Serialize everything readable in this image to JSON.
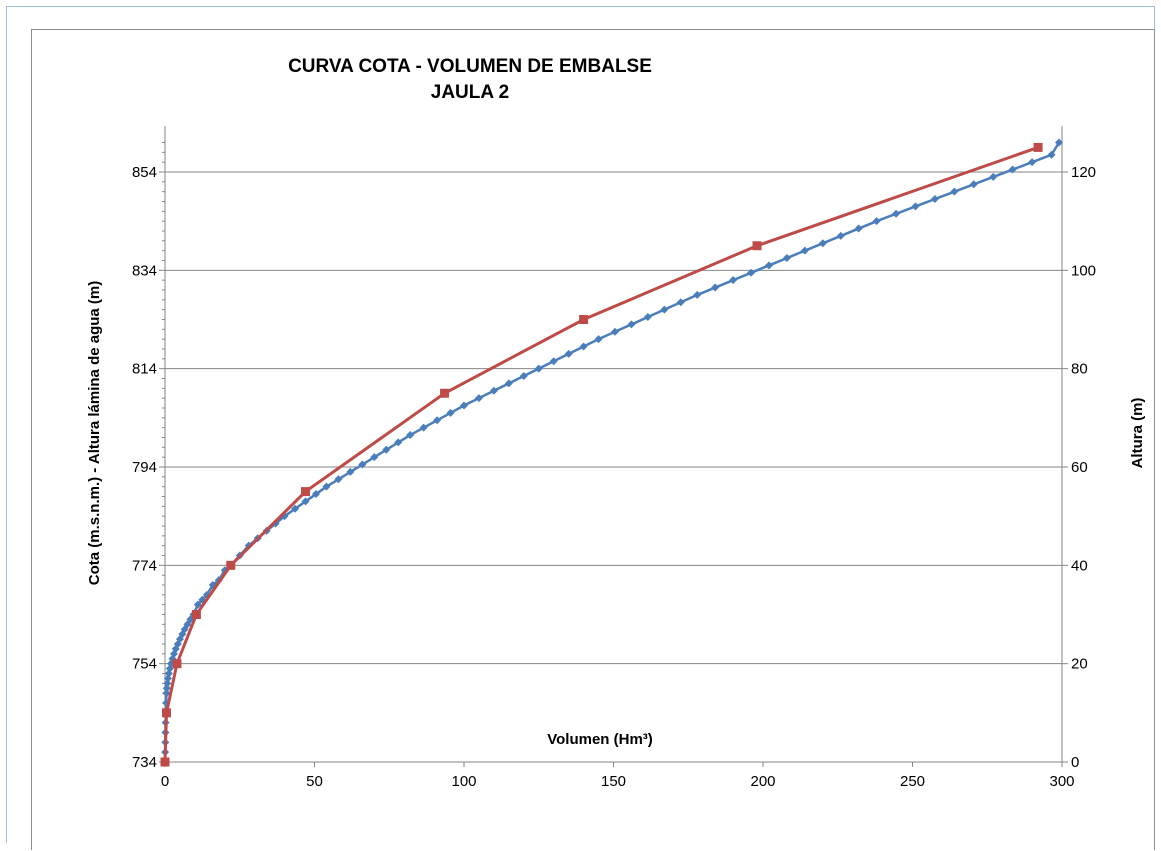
{
  "chart_data": {
    "type": "line",
    "title": "CURVA  COTA - VOLUMEN DE EMBALSE",
    "subtitle": "JAULA  2",
    "xlabel": "Volumen (Hm³)",
    "ylabel": "Cota (m.s.n.m.) - Altura lámina de agua (m)",
    "y2label": "Altura (m)",
    "xlim": [
      0,
      300
    ],
    "ylim": [
      734,
      860
    ],
    "y2lim": [
      0,
      126
    ],
    "xticks": [
      0,
      50,
      100,
      150,
      200,
      250,
      300
    ],
    "yticks": [
      734,
      754,
      774,
      794,
      814,
      834,
      854
    ],
    "y2ticks": [
      0,
      20,
      40,
      60,
      80,
      100,
      120
    ],
    "grid": "horizontal",
    "legend": "none",
    "colors": {
      "series_1": "#4a7ebb",
      "series_2": "#be4b48",
      "grid": "#868686",
      "frame": "#9fbedb"
    },
    "series": [
      {
        "marker": "diamond",
        "x": [
          0,
          0.05,
          0.1,
          0.15,
          0.2,
          0.3,
          0.4,
          0.5,
          0.6,
          0.8,
          1.0,
          1.3,
          1.6,
          2.0,
          2.5,
          3.0,
          3.6,
          4.3,
          5.0,
          5.8,
          6.6,
          7.5,
          8.5,
          9.5,
          11,
          12.5,
          14,
          16,
          18,
          20,
          22,
          25,
          28,
          31,
          34,
          37,
          40,
          43.5,
          47,
          50.5,
          54,
          58,
          62,
          66,
          70,
          74,
          78,
          82,
          86.5,
          91,
          95.5,
          100,
          105,
          110,
          115,
          120,
          125,
          130,
          135,
          140,
          145,
          150.5,
          156,
          161.5,
          167,
          172.5,
          178,
          184,
          190,
          196,
          202,
          208,
          214,
          220,
          226,
          232,
          238,
          244.5,
          251,
          257.5,
          264,
          270.5,
          277,
          283.5,
          290,
          296.5,
          299
        ],
        "values": [
          734,
          736,
          738,
          740,
          742,
          744,
          746,
          748,
          749,
          750,
          751,
          752,
          753,
          754,
          755,
          756,
          757,
          758,
          759,
          760,
          761,
          762,
          763,
          764,
          766,
          767,
          768,
          770,
          771,
          773,
          774,
          776,
          778,
          779.5,
          781,
          782.5,
          784,
          785.5,
          787,
          788.5,
          790,
          791.5,
          793,
          794.5,
          796,
          797.5,
          799,
          800.5,
          802,
          803.5,
          805,
          806.5,
          808,
          809.5,
          811,
          812.5,
          814,
          815.5,
          817,
          818.5,
          820,
          821.5,
          823,
          824.5,
          826,
          827.5,
          829,
          830.5,
          832,
          833.5,
          835,
          836.5,
          838,
          839.5,
          841,
          842.5,
          844,
          845.5,
          847,
          848.5,
          850,
          851.5,
          853,
          854.5,
          856,
          857.5,
          860
        ]
      },
      {
        "marker": "square",
        "x": [
          0,
          0.5,
          4,
          10.5,
          22,
          47,
          93.5,
          140,
          198,
          292
        ],
        "values": [
          734,
          744,
          754,
          764,
          774,
          789,
          809,
          824,
          839,
          859
        ]
      }
    ]
  }
}
